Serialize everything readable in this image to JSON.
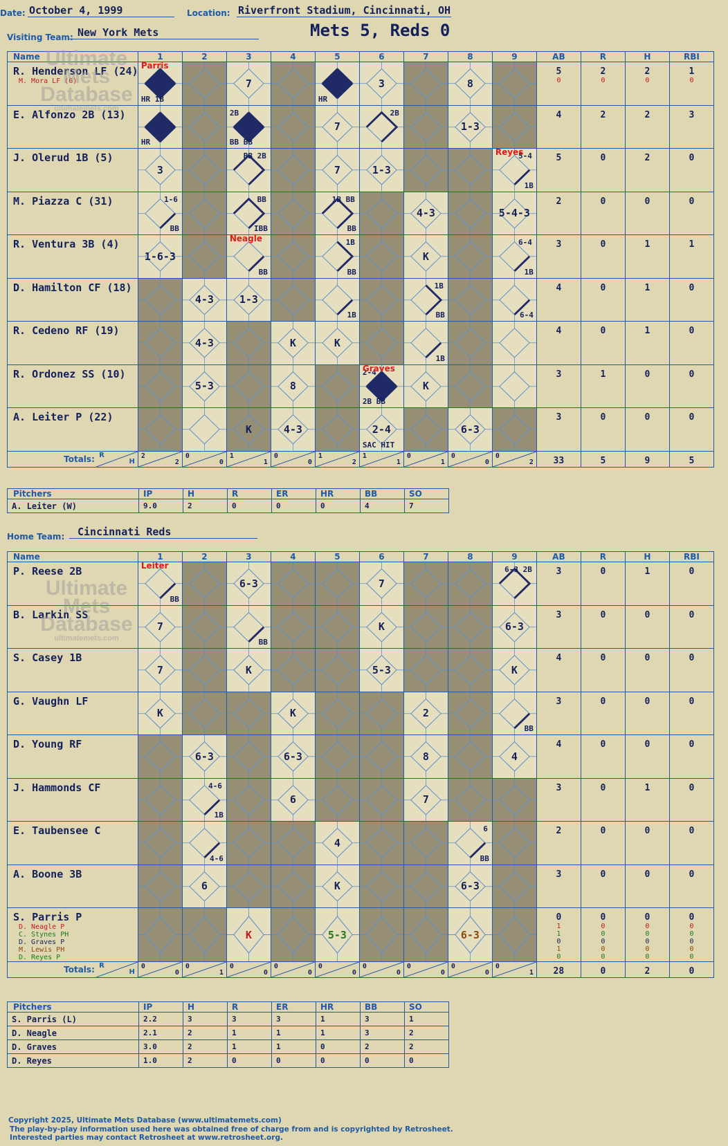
{
  "header": {
    "date_label": "Date:",
    "date": "October 4, 1999",
    "location_label": "Location:",
    "location": "Riverfront Stadium, Cincinnati, OH",
    "visiting_label": "Visiting Team:",
    "visiting_team": "New York Mets",
    "title": "Mets 5, Reds 0",
    "home_label": "Home Team:",
    "home_team": "Cincinnati Reds"
  },
  "watermark": {
    "line1": "Ultimate",
    "line2": "Mets",
    "line3": "Database",
    "url": "ultimatemets.com"
  },
  "grid_headers": {
    "name": "Name",
    "innings": [
      "1",
      "2",
      "3",
      "4",
      "5",
      "6",
      "7",
      "8",
      "9"
    ],
    "stats": [
      "AB",
      "R",
      "H",
      "RBI"
    ],
    "totals": "Totals:",
    "r": "R",
    "h": "H"
  },
  "pitch_headers": {
    "name": "Pitchers",
    "cols": [
      "IP",
      "H",
      "R",
      "ER",
      "HR",
      "BB",
      "SO"
    ]
  },
  "visiting": {
    "shade": [
      [
        0,
        1,
        0,
        1,
        0,
        0,
        1,
        0,
        1
      ],
      [
        0,
        1,
        0,
        1,
        0,
        0,
        1,
        0,
        1
      ],
      [
        0,
        1,
        0,
        1,
        0,
        0,
        1,
        1,
        0
      ],
      [
        0,
        1,
        0,
        1,
        0,
        1,
        0,
        1,
        0
      ],
      [
        0,
        1,
        0,
        1,
        0,
        1,
        0,
        1,
        0
      ],
      [
        1,
        0,
        0,
        1,
        0,
        1,
        0,
        1,
        0
      ],
      [
        1,
        0,
        1,
        0,
        0,
        1,
        0,
        1,
        0
      ],
      [
        1,
        0,
        1,
        0,
        1,
        0,
        0,
        1,
        0
      ],
      [
        1,
        0,
        1,
        0,
        1,
        0,
        1,
        0,
        1
      ]
    ],
    "players": [
      {
        "name": "R. Henderson LF (24)",
        "sub": [
          {
            "t": "M. Mora LF (6)",
            "c": "#c21a1a"
          }
        ],
        "stats": [
          "5",
          "2",
          "2",
          "1"
        ],
        "sub_stats": [
          [
            "0",
            "0",
            "0",
            "0"
          ]
        ],
        "cells": [
          {
            "inn": 1,
            "run": true,
            "bl": "HR 1B",
            "pit": "Parris"
          },
          {
            "inn": 3,
            "r": "7"
          },
          {
            "inn": 5,
            "run": true,
            "bl": "HR"
          },
          {
            "inn": 6,
            "r": "3"
          },
          {
            "inn": 8,
            "r": "8"
          }
        ]
      },
      {
        "name": "E. Alfonzo 2B (13)",
        "sub": [],
        "stats": [
          "4",
          "2",
          "2",
          "3"
        ],
        "sub_stats": [],
        "cells": [
          {
            "inn": 1,
            "run": true,
            "bl": "HR"
          },
          {
            "inn": 3,
            "run": true,
            "tr": "2B",
            "bl": "BB BB"
          },
          {
            "inn": 5,
            "r": "7"
          },
          {
            "inn": 6,
            "p": 3,
            "tr": "2B"
          },
          {
            "inn": 8,
            "r": "1-3"
          }
        ]
      },
      {
        "name": "J. Olerud 1B (5)",
        "sub": [],
        "stats": [
          "5",
          "0",
          "2",
          "0"
        ],
        "sub_stats": [],
        "cells": [
          {
            "inn": 1,
            "r": "3"
          },
          {
            "inn": 3,
            "p": 3,
            "tr": "BB 2B"
          },
          {
            "inn": 5,
            "r": "7"
          },
          {
            "inn": 6,
            "r": "1-3"
          },
          {
            "inn": 9,
            "p": 1,
            "tr": "5-4",
            "bl": "1B",
            "pit": "Reyes"
          }
        ]
      },
      {
        "name": "M. Piazza C (31)",
        "sub": [],
        "stats": [
          "2",
          "0",
          "0",
          "0"
        ],
        "sub_stats": [],
        "cells": [
          {
            "inn": 1,
            "p": 1,
            "tr": "1-6",
            "bl": "BB"
          },
          {
            "inn": 3,
            "p": 3,
            "tr": "BB",
            "bl": "IBB"
          },
          {
            "inn": 5,
            "p": 3,
            "tr": "1B BB",
            "bl": "BB"
          },
          {
            "inn": 7,
            "r": "4-3"
          },
          {
            "inn": 9,
            "r": "5-4-3"
          }
        ]
      },
      {
        "name": "R. Ventura 3B (4)",
        "sub": [],
        "stats": [
          "3",
          "0",
          "1",
          "1"
        ],
        "sub_stats": [],
        "cells": [
          {
            "inn": 1,
            "r": "1-6-3"
          },
          {
            "inn": 3,
            "p": 1,
            "bl": "BB",
            "pit": "Neagle"
          },
          {
            "inn": 5,
            "p": 2,
            "tr": "1B",
            "bl": "BB"
          },
          {
            "inn": 7,
            "r": "K"
          },
          {
            "inn": 9,
            "p": 1,
            "tr": "6-4",
            "bl": "1B"
          }
        ]
      },
      {
        "name": "D. Hamilton CF (18)",
        "sub": [],
        "stats": [
          "4",
          "0",
          "1",
          "0"
        ],
        "sub_stats": [],
        "cells": [
          {
            "inn": 2,
            "r": "4-3"
          },
          {
            "inn": 3,
            "r": "1-3"
          },
          {
            "inn": 5,
            "p": 1,
            "bl": "1B"
          },
          {
            "inn": 7,
            "p": 2,
            "tr": "1B",
            "bl": "BB"
          },
          {
            "inn": 9,
            "p": 1,
            "bl": "6-4"
          }
        ]
      },
      {
        "name": "R. Cedeno RF (19)",
        "sub": [],
        "stats": [
          "4",
          "0",
          "1",
          "0"
        ],
        "sub_stats": [],
        "cells": [
          {
            "inn": 2,
            "r": "4-3"
          },
          {
            "inn": 4,
            "r": "K"
          },
          {
            "inn": 5,
            "r": "K"
          },
          {
            "inn": 7,
            "p": 1,
            "bl": "1B"
          }
        ]
      },
      {
        "name": "R. Ordonez SS (10)",
        "sub": [],
        "stats": [
          "3",
          "1",
          "0",
          "0"
        ],
        "sub_stats": [],
        "cells": [
          {
            "inn": 2,
            "r": "5-3"
          },
          {
            "inn": 4,
            "r": "8"
          },
          {
            "inn": 6,
            "run": true,
            "tr": "2-4",
            "bl": "2B BB",
            "pit": "Graves"
          },
          {
            "inn": 7,
            "r": "K"
          }
        ]
      },
      {
        "name": "A. Leiter P (22)",
        "sub": [],
        "stats": [
          "3",
          "0",
          "0",
          "0"
        ],
        "sub_stats": [],
        "cells": [
          {
            "inn": 3,
            "r": "K"
          },
          {
            "inn": 4,
            "r": "4-3"
          },
          {
            "inn": 6,
            "r": "2-4",
            "bl": "SAC HIT"
          },
          {
            "inn": 8,
            "r": "6-3"
          }
        ]
      }
    ],
    "totals": [
      [
        "2",
        "2"
      ],
      [
        "0",
        "0"
      ],
      [
        "1",
        "1"
      ],
      [
        "0",
        "0"
      ],
      [
        "1",
        "2"
      ],
      [
        "1",
        "1"
      ],
      [
        "0",
        "1"
      ],
      [
        "0",
        "0"
      ],
      [
        "0",
        "2"
      ]
    ],
    "total_stats": [
      "33",
      "5",
      "9",
      "5"
    ],
    "pitchers": [
      {
        "name": "A. Leiter (W)",
        "vals": [
          "9.0",
          "2",
          "0",
          "0",
          "0",
          "4",
          "7"
        ]
      }
    ]
  },
  "home": {
    "shade": [
      [
        0,
        1,
        0,
        1,
        1,
        0,
        1,
        1,
        0
      ],
      [
        0,
        1,
        0,
        1,
        1,
        0,
        1,
        1,
        0
      ],
      [
        0,
        1,
        0,
        1,
        1,
        0,
        1,
        1,
        0
      ],
      [
        0,
        1,
        1,
        0,
        1,
        1,
        0,
        1,
        0
      ],
      [
        1,
        0,
        1,
        0,
        1,
        1,
        0,
        1,
        0
      ],
      [
        1,
        0,
        1,
        0,
        1,
        1,
        0,
        1,
        1
      ],
      [
        1,
        0,
        1,
        1,
        0,
        1,
        1,
        0,
        1
      ],
      [
        1,
        0,
        1,
        1,
        0,
        1,
        1,
        0,
        1
      ],
      [
        1,
        1,
        0,
        1,
        0,
        1,
        1,
        0,
        1
      ]
    ],
    "players": [
      {
        "name": "P. Reese 2B",
        "sub": [],
        "stats": [
          "3",
          "0",
          "1",
          "0"
        ],
        "sub_stats": [],
        "cells": [
          {
            "inn": 1,
            "p": 1,
            "bl": "BB",
            "pit": "Leiter"
          },
          {
            "inn": 3,
            "r": "6-3"
          },
          {
            "inn": 6,
            "r": "7"
          },
          {
            "inn": 9,
            "p": 3,
            "tr": "6-3 2B"
          }
        ]
      },
      {
        "name": "B. Larkin SS",
        "sub": [],
        "stats": [
          "3",
          "0",
          "0",
          "0"
        ],
        "sub_stats": [],
        "cells": [
          {
            "inn": 1,
            "r": "7"
          },
          {
            "inn": 3,
            "p": 1,
            "bl": "BB"
          },
          {
            "inn": 6,
            "r": "K"
          },
          {
            "inn": 9,
            "r": "6-3"
          }
        ]
      },
      {
        "name": "S. Casey 1B",
        "sub": [],
        "stats": [
          "4",
          "0",
          "0",
          "0"
        ],
        "sub_stats": [],
        "cells": [
          {
            "inn": 1,
            "r": "7"
          },
          {
            "inn": 3,
            "r": "K"
          },
          {
            "inn": 6,
            "r": "5-3"
          },
          {
            "inn": 9,
            "r": "K"
          }
        ]
      },
      {
        "name": "G. Vaughn LF",
        "sub": [],
        "stats": [
          "3",
          "0",
          "0",
          "0"
        ],
        "sub_stats": [],
        "cells": [
          {
            "inn": 1,
            "r": "K"
          },
          {
            "inn": 4,
            "r": "K"
          },
          {
            "inn": 7,
            "r": "2"
          },
          {
            "inn": 9,
            "p": 1,
            "bl": "BB"
          }
        ]
      },
      {
        "name": "D. Young RF",
        "sub": [],
        "stats": [
          "4",
          "0",
          "0",
          "0"
        ],
        "sub_stats": [],
        "cells": [
          {
            "inn": 2,
            "r": "6-3"
          },
          {
            "inn": 4,
            "r": "6-3"
          },
          {
            "inn": 7,
            "r": "8"
          },
          {
            "inn": 9,
            "r": "4"
          }
        ]
      },
      {
        "name": "J. Hammonds CF",
        "sub": [],
        "stats": [
          "3",
          "0",
          "1",
          "0"
        ],
        "sub_stats": [],
        "cells": [
          {
            "inn": 2,
            "p": 1,
            "tr": "4-6",
            "bl": "1B"
          },
          {
            "inn": 4,
            "r": "6"
          },
          {
            "inn": 7,
            "r": "7"
          }
        ]
      },
      {
        "name": "E. Taubensee C",
        "sub": [],
        "stats": [
          "2",
          "0",
          "0",
          "0"
        ],
        "sub_stats": [],
        "cells": [
          {
            "inn": 2,
            "p": 1,
            "bl": "4-6"
          },
          {
            "inn": 5,
            "r": "4"
          },
          {
            "inn": 8,
            "p": 1,
            "tr": "6",
            "bl": "BB"
          }
        ]
      },
      {
        "name": "A. Boone 3B",
        "sub": [],
        "stats": [
          "3",
          "0",
          "0",
          "0"
        ],
        "sub_stats": [],
        "cells": [
          {
            "inn": 2,
            "r": "6"
          },
          {
            "inn": 5,
            "r": "K"
          },
          {
            "inn": 8,
            "r": "6-3"
          }
        ]
      },
      {
        "name": "S. Parris P",
        "sub": [
          {
            "t": "D. Neagle P",
            "c": "#c21a1a"
          },
          {
            "t": "C. Stynes PH",
            "c": "#1d7a1d"
          },
          {
            "t": "D. Graves P",
            "c": "#14205a"
          },
          {
            "t": "M. Lewis PH",
            "c": "#8a4b0f"
          },
          {
            "t": "D. Reyes P",
            "c": "#1d7a1d"
          }
        ],
        "stats": [
          "0",
          "0",
          "0",
          "0"
        ],
        "sub_stats": [
          [
            "1",
            "0",
            "0",
            "0"
          ],
          [
            "1",
            "0",
            "0",
            "0"
          ],
          [
            "0",
            "0",
            "0",
            "0"
          ],
          [
            "1",
            "0",
            "0",
            "0"
          ],
          [
            "0",
            "0",
            "0",
            "0"
          ]
        ],
        "cells": [
          {
            "inn": 3,
            "r": "K",
            "c": "#c21a1a"
          },
          {
            "inn": 5,
            "r": "5-3",
            "c": "#1d7a1d"
          },
          {
            "inn": 8,
            "r": "6-3",
            "c": "#8a4b0f"
          }
        ]
      }
    ],
    "totals": [
      [
        "0",
        "0"
      ],
      [
        "0",
        "1"
      ],
      [
        "0",
        "0"
      ],
      [
        "0",
        "0"
      ],
      [
        "0",
        "0"
      ],
      [
        "0",
        "0"
      ],
      [
        "0",
        "0"
      ],
      [
        "0",
        "0"
      ],
      [
        "0",
        "1"
      ]
    ],
    "total_stats": [
      "28",
      "0",
      "2",
      "0"
    ],
    "pitchers": [
      {
        "name": "S. Parris (L)",
        "vals": [
          "2.2",
          "3",
          "3",
          "3",
          "1",
          "3",
          "1"
        ]
      },
      {
        "name": "D. Neagle",
        "vals": [
          "2.1",
          "2",
          "1",
          "1",
          "1",
          "3",
          "2"
        ]
      },
      {
        "name": "D. Graves",
        "vals": [
          "3.0",
          "2",
          "1",
          "1",
          "0",
          "2",
          "2"
        ]
      },
      {
        "name": "D. Reyes",
        "vals": [
          "1.0",
          "2",
          "0",
          "0",
          "0",
          "0",
          "0"
        ]
      }
    ]
  },
  "footer": {
    "line1": "Copyright 2025, Ultimate Mets Database (www.ultimatemets.com)",
    "line2": "The play-by-play information used here was obtained free of charge from and is copyrighted by Retrosheet.",
    "line3": "Interested parties may contact Retrosheet at www.retrosheet.org."
  }
}
